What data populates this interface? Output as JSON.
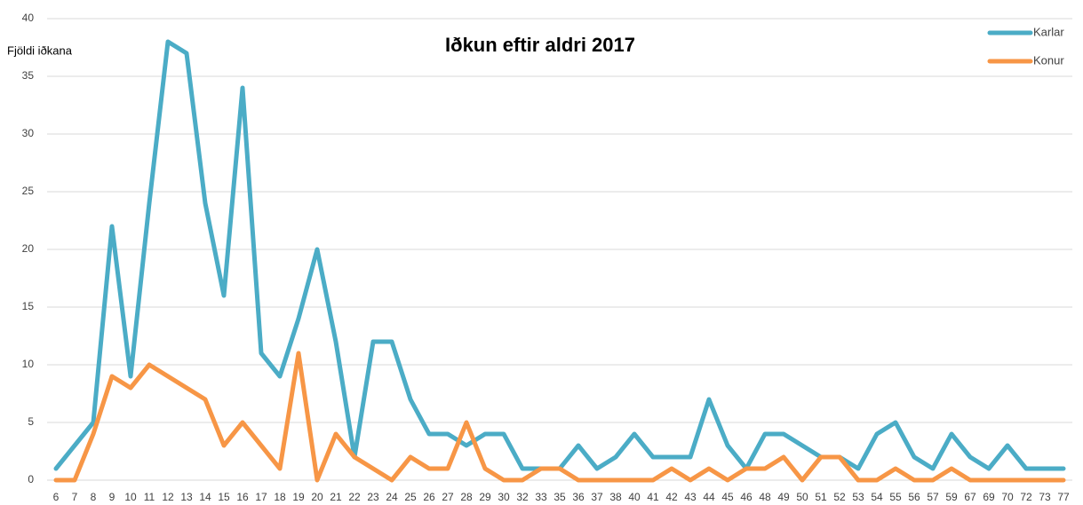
{
  "chart_data": {
    "type": "line",
    "title": "Iðkun eftir aldri 2017",
    "y_label": "Fjöldi iðkana",
    "categories": [
      "6",
      "7",
      "8",
      "9",
      "10",
      "11",
      "12",
      "13",
      "14",
      "15",
      "16",
      "17",
      "18",
      "19",
      "20",
      "21",
      "22",
      "23",
      "24",
      "25",
      "26",
      "27",
      "28",
      "29",
      "30",
      "32",
      "33",
      "35",
      "36",
      "37",
      "38",
      "40",
      "41",
      "42",
      "43",
      "44",
      "45",
      "46",
      "48",
      "49",
      "50",
      "51",
      "52",
      "53",
      "54",
      "55",
      "56",
      "57",
      "59",
      "67",
      "69",
      "70",
      "72",
      "73",
      "77"
    ],
    "series": [
      {
        "name": "Karlar",
        "color": "#4bacc6",
        "values": [
          1,
          3,
          5,
          22,
          9,
          24,
          38,
          37,
          24,
          16,
          34,
          11,
          9,
          14,
          20,
          12,
          2,
          12,
          12,
          7,
          4,
          4,
          3,
          4,
          4,
          1,
          1,
          1,
          3,
          1,
          2,
          4,
          2,
          2,
          2,
          7,
          3,
          1,
          4,
          4,
          3,
          2,
          2,
          1,
          4,
          5,
          2,
          1,
          4,
          2,
          1,
          3,
          1,
          1,
          1
        ]
      },
      {
        "name": "Konur",
        "color": "#f79646",
        "values": [
          0,
          0,
          4,
          9,
          8,
          10,
          9,
          8,
          7,
          3,
          5,
          3,
          1,
          11,
          0,
          4,
          2,
          1,
          0,
          2,
          1,
          1,
          5,
          1,
          0,
          0,
          1,
          1,
          0,
          0,
          0,
          0,
          0,
          1,
          0,
          1,
          0,
          1,
          1,
          2,
          0,
          2,
          2,
          0,
          0,
          1,
          0,
          0,
          1,
          0,
          0,
          0,
          0,
          0,
          0
        ]
      }
    ],
    "ylim": [
      0,
      40
    ],
    "yticks": [
      0,
      5,
      10,
      15,
      20,
      25,
      30,
      35,
      40
    ],
    "grid": true,
    "legend": "top-right"
  }
}
